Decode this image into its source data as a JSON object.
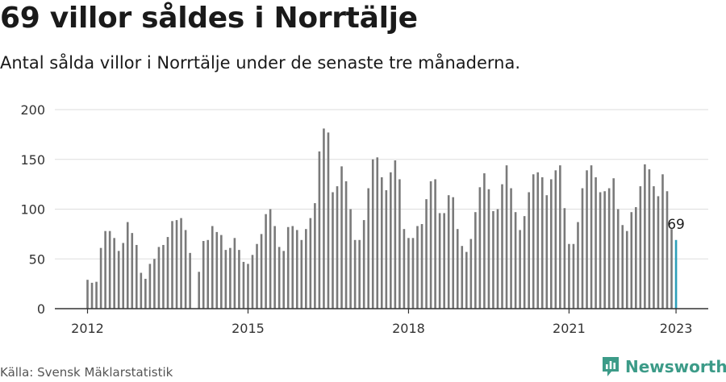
{
  "title": "69 villor såldes i Norrtälje",
  "subtitle": "Antal sålda villor i Norrtälje under de senaste tre månaderna.",
  "source": "Källa: Svensk Mäklarstatistik",
  "brand": {
    "name": "Newsworthy",
    "icon": "newsworthy-logo-icon",
    "color": "#3c9b88"
  },
  "chart_data": {
    "type": "bar",
    "ylim": [
      0,
      200
    ],
    "yticks": [
      0,
      50,
      100,
      150,
      200
    ],
    "xticks": [
      {
        "index": 0,
        "label": "2012"
      },
      {
        "index": 36,
        "label": "2015"
      },
      {
        "index": 72,
        "label": "2018"
      },
      {
        "index": 108,
        "label": "2021"
      },
      {
        "index": 132,
        "label": "2023"
      }
    ],
    "grid": true,
    "bar_color": "#7a7a7a",
    "highlight_color": "#2c9fb9",
    "highlight_label": "69",
    "period": "2012-01 – 2023-01, monthly",
    "values": [
      29,
      26,
      27,
      61,
      78,
      78,
      71,
      58,
      66,
      87,
      76,
      64,
      36,
      30,
      45,
      50,
      62,
      64,
      72,
      88,
      89,
      91,
      79,
      56,
      null,
      37,
      68,
      69,
      83,
      77,
      74,
      59,
      61,
      71,
      59,
      47,
      45,
      54,
      65,
      75,
      95,
      100,
      83,
      62,
      58,
      82,
      83,
      79,
      69,
      80,
      91,
      106,
      158,
      181,
      177,
      117,
      123,
      143,
      128,
      100,
      69,
      69,
      89,
      121,
      150,
      152,
      132,
      119,
      137,
      149,
      130,
      80,
      71,
      71,
      83,
      85,
      110,
      128,
      130,
      96,
      96,
      114,
      112,
      80,
      63,
      57,
      70,
      97,
      122,
      136,
      120,
      98,
      100,
      125,
      144,
      121,
      97,
      79,
      93,
      117,
      135,
      137,
      132,
      114,
      130,
      139,
      144,
      101,
      65,
      65,
      87,
      121,
      139,
      144,
      132,
      117,
      118,
      121,
      131,
      100,
      84,
      78,
      97,
      102,
      123,
      145,
      140,
      123,
      113,
      135,
      118,
      80,
      69
    ]
  }
}
